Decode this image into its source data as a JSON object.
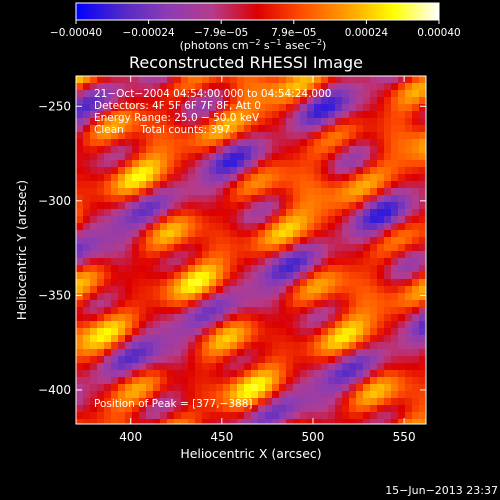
{
  "chart_data": {
    "type": "heatmap",
    "title": "Reconstructed RHESSI Image",
    "xlabel": "Heliocentric X (arcsec)",
    "ylabel": "Heliocentric Y (arcsec)",
    "xlim": [
      370,
      562
    ],
    "ylim": [
      -418,
      -234
    ],
    "x_ticks": [
      400,
      450,
      500,
      550
    ],
    "y_ticks": [
      -250,
      -300,
      -350,
      -400
    ],
    "x_tick_labels": [
      "400",
      "450",
      "500",
      "550"
    ],
    "y_tick_labels": [
      "−250",
      "−300",
      "−350",
      "−400"
    ],
    "colorbar": {
      "range": [
        -0.0004,
        0.0004
      ],
      "tick_labels": [
        "−0.00040",
        "−0.00024",
        "−7.9e−05",
        "7.9e−05",
        "0.00024",
        "0.00040"
      ],
      "unit_label_parts": [
        "(photons cm",
        "−2",
        " s",
        "−1",
        " asec",
        "−2",
        ")"
      ]
    },
    "annotations": [
      "21−Oct−2004 04:54:00.000 to 04:54:24.000",
      "Detectors: 4F 5F 6F 7F 8F, Att 0",
      "Energy Range: 25.0 − 50.0 keV",
      "Clean     Total counts: 397."
    ],
    "peak_label": "Position of Peak = [377,−388]",
    "colormap": [
      "#0000ff",
      "#5028c8",
      "#8c3cb4",
      "#b43c8c",
      "#dc0000",
      "#ff5000",
      "#ffa000",
      "#ffff00",
      "#ffffff"
    ]
  },
  "footer": {
    "date": "15−Jun−2013 23:37"
  }
}
